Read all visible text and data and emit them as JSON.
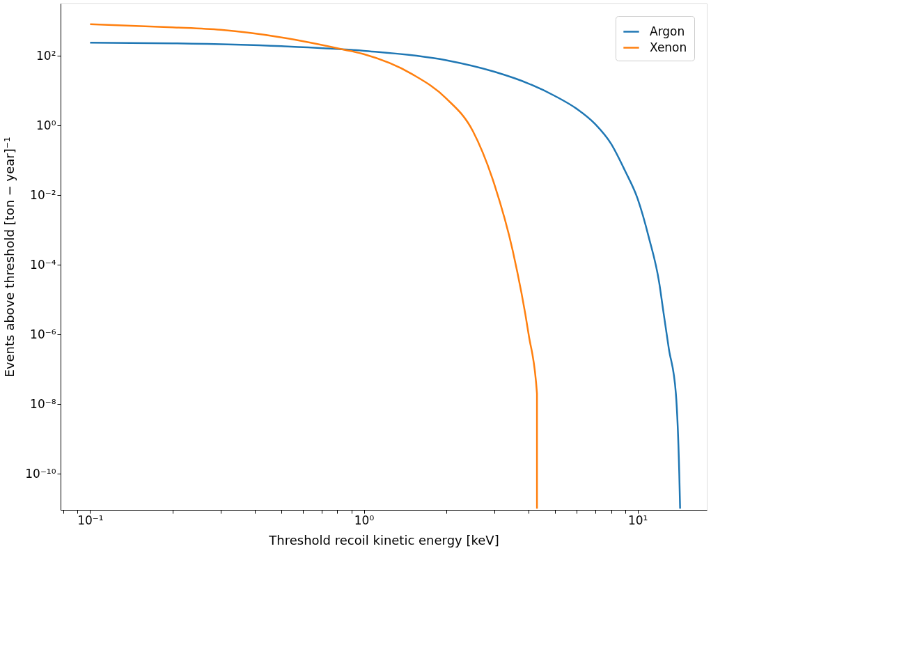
{
  "chart_data": {
    "type": "line",
    "xlabel": "Threshold recoil kinetic energy [keV]",
    "ylabel": "Events above threshold [ton − year]⁻¹",
    "log": "xy",
    "grid": false,
    "legend": "top right",
    "line_style": "solid",
    "marker": "none",
    "xlim": [
      0.078,
      17.9
    ],
    "ylim": [
      9.2e-12,
      3200
    ],
    "xticks": [
      {
        "value": 0.08,
        "label": null
      },
      {
        "value": 0.09,
        "label": null
      },
      {
        "value": 0.1,
        "label": "10⁻¹"
      },
      {
        "value": 0.2,
        "label": null
      },
      {
        "value": 0.3,
        "label": null
      },
      {
        "value": 0.4,
        "label": null
      },
      {
        "value": 0.5,
        "label": null
      },
      {
        "value": 0.6,
        "label": null
      },
      {
        "value": 0.7,
        "label": null
      },
      {
        "value": 0.8,
        "label": null
      },
      {
        "value": 0.9,
        "label": null
      },
      {
        "value": 1,
        "label": "10⁰"
      },
      {
        "value": 2,
        "label": null
      },
      {
        "value": 3,
        "label": null
      },
      {
        "value": 4,
        "label": null
      },
      {
        "value": 5,
        "label": null
      },
      {
        "value": 6,
        "label": null
      },
      {
        "value": 7,
        "label": null
      },
      {
        "value": 8,
        "label": null
      },
      {
        "value": 9,
        "label": null
      },
      {
        "value": 10,
        "label": "10¹"
      }
    ],
    "yticks": [
      {
        "value": 1e-10,
        "label": "10⁻¹⁰"
      },
      {
        "value": 1e-08,
        "label": "10⁻⁸"
      },
      {
        "value": 1e-06,
        "label": "10⁻⁶"
      },
      {
        "value": 0.0001,
        "label": "10⁻⁴"
      },
      {
        "value": 0.01,
        "label": "10⁻²"
      },
      {
        "value": 1,
        "label": "10⁰"
      },
      {
        "value": 100,
        "label": "10²"
      }
    ],
    "series": [
      {
        "name": "Argon",
        "color": "#1f77b4",
        "x": [
          0.1,
          0.2,
          0.5,
          1,
          2,
          3,
          4,
          5,
          6,
          7,
          8,
          9,
          10,
          11,
          12,
          12.4,
          13,
          13.8,
          14.2,
          14.3
        ],
        "values": [
          240,
          230,
          190,
          140,
          75,
          35,
          16,
          7,
          3,
          1.1,
          0.3,
          0.05,
          0.008,
          0.0006,
          3e-05,
          5e-06,
          4e-07,
          2e-08,
          1e-10,
          1e-11
        ]
      },
      {
        "name": "Xenon",
        "color": "#ff7f0e",
        "x": [
          0.1,
          0.2,
          0.3,
          0.5,
          0.85,
          1,
          1.5,
          2,
          2.5,
          3,
          3.5,
          4,
          4.29,
          4.29
        ],
        "values": [
          810,
          660,
          560,
          340,
          150,
          112,
          30,
          6,
          0.7,
          0.02,
          0.00025,
          1e-06,
          2e-08,
          1e-11
        ]
      }
    ]
  }
}
